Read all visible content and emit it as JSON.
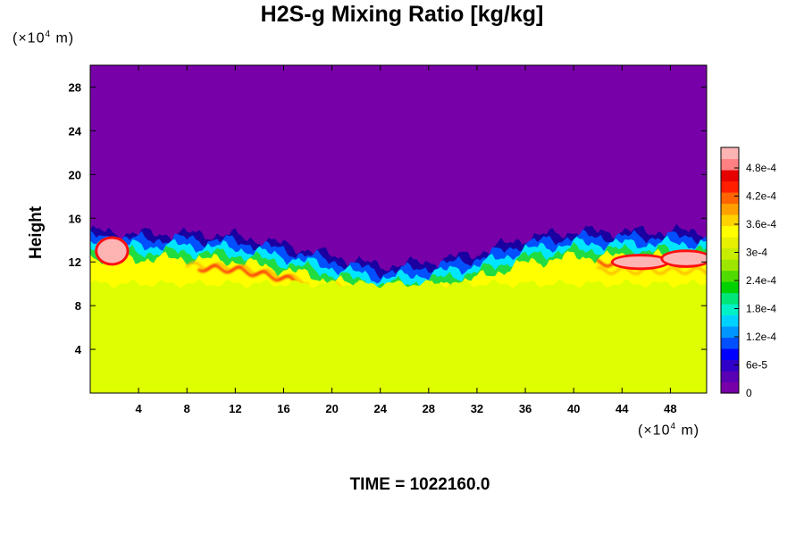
{
  "chart_data": {
    "type": "heatmap",
    "title": "H2S-g Mixing Ratio [kg/kg]",
    "ylabel": "Height",
    "x_unit": {
      "prefix": "(×10",
      "exp": "4",
      "suffix": " m)"
    },
    "y_unit": {
      "prefix": "(×10",
      "exp": "4",
      "suffix": " m)"
    },
    "x_ticks": [
      4,
      8,
      12,
      16,
      20,
      24,
      28,
      32,
      36,
      40,
      44,
      48
    ],
    "y_ticks": [
      4,
      8,
      12,
      16,
      20,
      24,
      28
    ],
    "xlim": [
      0,
      51
    ],
    "ylim": [
      0,
      30
    ],
    "background_value": 0,
    "lower_layer_value": 0.00034,
    "lower_layer_top_y": 10,
    "mixing_layer_top_y": [
      [
        0,
        14.8
      ],
      [
        4,
        14.6
      ],
      [
        8,
        14.6
      ],
      [
        12,
        14.4
      ],
      [
        16,
        13.6
      ],
      [
        20,
        12.6
      ],
      [
        24,
        11.6
      ],
      [
        28,
        12.0
      ],
      [
        32,
        12.8
      ],
      [
        36,
        14.2
      ],
      [
        40,
        14.8
      ],
      [
        44,
        14.8
      ],
      [
        48,
        14.8
      ],
      [
        51,
        14.8
      ]
    ],
    "colorbar": {
      "ticks": [
        "4.8e-4",
        "4.2e-4",
        "3.6e-4",
        "3e-4",
        "2.4e-4",
        "1.8e-4",
        "1.2e-4",
        "6e-5",
        "0"
      ],
      "colors": [
        "#7800a8",
        "#5a00b4",
        "#3000c8",
        "#0000ff",
        "#0050ff",
        "#0096ff",
        "#00d2ff",
        "#00f0c8",
        "#00e678",
        "#00d200",
        "#50dc00",
        "#9ee600",
        "#c8ec00",
        "#e6f000",
        "#ffff00",
        "#ffd200",
        "#ffa000",
        "#ff6400",
        "#ff1e00",
        "#e60000",
        "#ff8080",
        "#ffb4b4"
      ]
    },
    "colors": {
      "upper": "#7800a8",
      "lower": "#ddff00",
      "band_dark": "#1a00a0",
      "band_blue": "#0050ff",
      "band_cyan": "#00e6ff",
      "band_green": "#20dc40",
      "band_yellow": "#ffff00",
      "band_orange": "#ffb000",
      "band_red": "#ff1010",
      "band_pink": "#ffb4b4"
    }
  },
  "footer": {
    "time_text": "TIME = 1022160.0"
  }
}
